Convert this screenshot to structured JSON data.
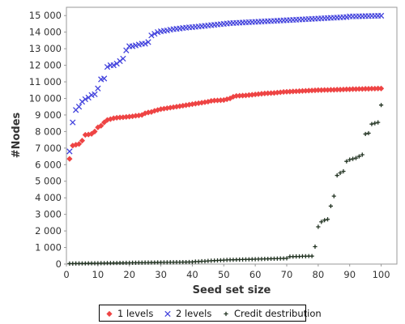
{
  "chart_data": {
    "type": "scatter",
    "xlabel": "Seed set size",
    "ylabel": "#Nodes",
    "xlim": [
      0,
      105
    ],
    "ylim": [
      0,
      15500
    ],
    "x_ticks": [
      "0",
      "10",
      "20",
      "30",
      "40",
      "50",
      "60",
      "70",
      "80",
      "90",
      "100"
    ],
    "y_ticks": [
      "0",
      "1 000",
      "2 000",
      "3 000",
      "4 000",
      "5 000",
      "6 000",
      "7 000",
      "8 000",
      "9 000",
      "10 000",
      "11 000",
      "12 000",
      "13 000",
      "14 000",
      "15 000"
    ],
    "grid": false,
    "legend_position": "bottom",
    "series": [
      {
        "name": "1 levels",
        "marker": "diamond",
        "color": "#ee4444",
        "x": [
          1,
          2,
          3,
          4,
          5,
          6,
          7,
          8,
          9,
          10,
          11,
          12,
          13,
          14,
          15,
          16,
          17,
          18,
          19,
          20,
          21,
          22,
          23,
          24,
          25,
          26,
          27,
          28,
          29,
          30,
          31,
          32,
          33,
          34,
          35,
          36,
          37,
          38,
          39,
          40,
          41,
          42,
          43,
          44,
          45,
          46,
          47,
          48,
          49,
          50,
          51,
          52,
          53,
          54,
          55,
          56,
          57,
          58,
          59,
          60,
          61,
          62,
          63,
          64,
          65,
          66,
          67,
          68,
          69,
          70,
          71,
          72,
          73,
          74,
          75,
          76,
          77,
          78,
          79,
          80,
          81,
          82,
          83,
          84,
          85,
          86,
          87,
          88,
          89,
          90,
          91,
          92,
          93,
          94,
          95,
          96,
          97,
          98,
          99,
          100
        ],
        "y": [
          6350,
          7150,
          7200,
          7250,
          7450,
          7800,
          7820,
          7860,
          8000,
          8250,
          8350,
          8550,
          8700,
          8750,
          8800,
          8830,
          8850,
          8860,
          8880,
          8900,
          8920,
          8950,
          8970,
          9000,
          9100,
          9150,
          9180,
          9250,
          9300,
          9350,
          9380,
          9410,
          9440,
          9470,
          9500,
          9530,
          9560,
          9590,
          9620,
          9650,
          9680,
          9710,
          9740,
          9770,
          9800,
          9850,
          9870,
          9880,
          9890,
          9900,
          9950,
          10000,
          10100,
          10150,
          10160,
          10170,
          10180,
          10200,
          10220,
          10240,
          10260,
          10280,
          10300,
          10310,
          10320,
          10330,
          10350,
          10370,
          10390,
          10400,
          10410,
          10420,
          10430,
          10440,
          10450,
          10460,
          10470,
          10480,
          10490,
          10500,
          10500,
          10510,
          10510,
          10520,
          10520,
          10530,
          10530,
          10540,
          10550,
          10550,
          10560,
          10560,
          10570,
          10570,
          10580,
          10580,
          10590,
          10590,
          10600,
          10600
        ]
      },
      {
        "name": "2 levels",
        "marker": "x",
        "color": "#4444dd",
        "x": [
          1,
          2,
          3,
          4,
          5,
          6,
          7,
          8,
          9,
          10,
          11,
          12,
          13,
          14,
          15,
          16,
          17,
          18,
          19,
          20,
          21,
          22,
          23,
          24,
          25,
          26,
          27,
          28,
          29,
          30,
          31,
          32,
          33,
          34,
          35,
          36,
          37,
          38,
          39,
          40,
          41,
          42,
          43,
          44,
          45,
          46,
          47,
          48,
          49,
          50,
          51,
          52,
          53,
          54,
          55,
          56,
          57,
          58,
          59,
          60,
          61,
          62,
          63,
          64,
          65,
          66,
          67,
          68,
          69,
          70,
          71,
          72,
          73,
          74,
          75,
          76,
          77,
          78,
          79,
          80,
          81,
          82,
          83,
          84,
          85,
          86,
          87,
          88,
          89,
          90,
          91,
          92,
          93,
          94,
          95,
          96,
          97,
          98,
          99,
          100
        ],
        "y": [
          6800,
          8550,
          9300,
          9500,
          9800,
          9950,
          10050,
          10200,
          10250,
          10600,
          11150,
          11200,
          11900,
          12000,
          12000,
          12100,
          12250,
          12400,
          12900,
          13150,
          13150,
          13200,
          13250,
          13300,
          13300,
          13400,
          13800,
          13900,
          14000,
          14050,
          14080,
          14100,
          14150,
          14180,
          14200,
          14220,
          14250,
          14270,
          14290,
          14300,
          14320,
          14340,
          14360,
          14380,
          14400,
          14420,
          14440,
          14460,
          14480,
          14500,
          14520,
          14540,
          14550,
          14560,
          14570,
          14580,
          14590,
          14600,
          14610,
          14620,
          14630,
          14640,
          14650,
          14660,
          14670,
          14680,
          14690,
          14700,
          14710,
          14720,
          14730,
          14740,
          14750,
          14760,
          14770,
          14780,
          14790,
          14800,
          14810,
          14820,
          14830,
          14840,
          14850,
          14860,
          14870,
          14880,
          14890,
          14900,
          14910,
          14950,
          14950,
          14950,
          14960,
          14960,
          14970,
          14970,
          14980,
          14980,
          14990,
          14990
        ]
      },
      {
        "name": "Credit destribution",
        "marker": "plus",
        "color": "#223322",
        "x": [
          1,
          2,
          3,
          4,
          5,
          6,
          7,
          8,
          9,
          10,
          11,
          12,
          13,
          14,
          15,
          16,
          17,
          18,
          19,
          20,
          21,
          22,
          23,
          24,
          25,
          26,
          27,
          28,
          29,
          30,
          31,
          32,
          33,
          34,
          35,
          36,
          37,
          38,
          39,
          40,
          41,
          42,
          43,
          44,
          45,
          46,
          47,
          48,
          49,
          50,
          51,
          52,
          53,
          54,
          55,
          56,
          57,
          58,
          59,
          60,
          61,
          62,
          63,
          64,
          65,
          66,
          67,
          68,
          69,
          70,
          71,
          72,
          73,
          74,
          75,
          76,
          77,
          78,
          79,
          80,
          81,
          82,
          83,
          84,
          85,
          86,
          87,
          88,
          89,
          90,
          91,
          92,
          93,
          94,
          95,
          96,
          97,
          98,
          99,
          100
        ],
        "y": [
          30,
          30,
          35,
          35,
          40,
          40,
          45,
          45,
          50,
          50,
          55,
          55,
          60,
          60,
          65,
          65,
          70,
          70,
          75,
          75,
          80,
          80,
          85,
          85,
          90,
          90,
          95,
          95,
          100,
          100,
          105,
          105,
          110,
          110,
          115,
          115,
          120,
          120,
          125,
          125,
          150,
          150,
          170,
          170,
          190,
          200,
          210,
          220,
          230,
          240,
          250,
          255,
          260,
          265,
          270,
          275,
          280,
          285,
          290,
          295,
          300,
          305,
          310,
          315,
          320,
          325,
          330,
          335,
          340,
          350,
          450,
          450,
          460,
          460,
          470,
          470,
          480,
          480,
          1050,
          2250,
          2550,
          2650,
          2700,
          3500,
          4100,
          5350,
          5500,
          5600,
          6200,
          6300,
          6350,
          6400,
          6500,
          6600,
          7850,
          7900,
          8450,
          8500,
          8550,
          9600
        ]
      }
    ]
  }
}
